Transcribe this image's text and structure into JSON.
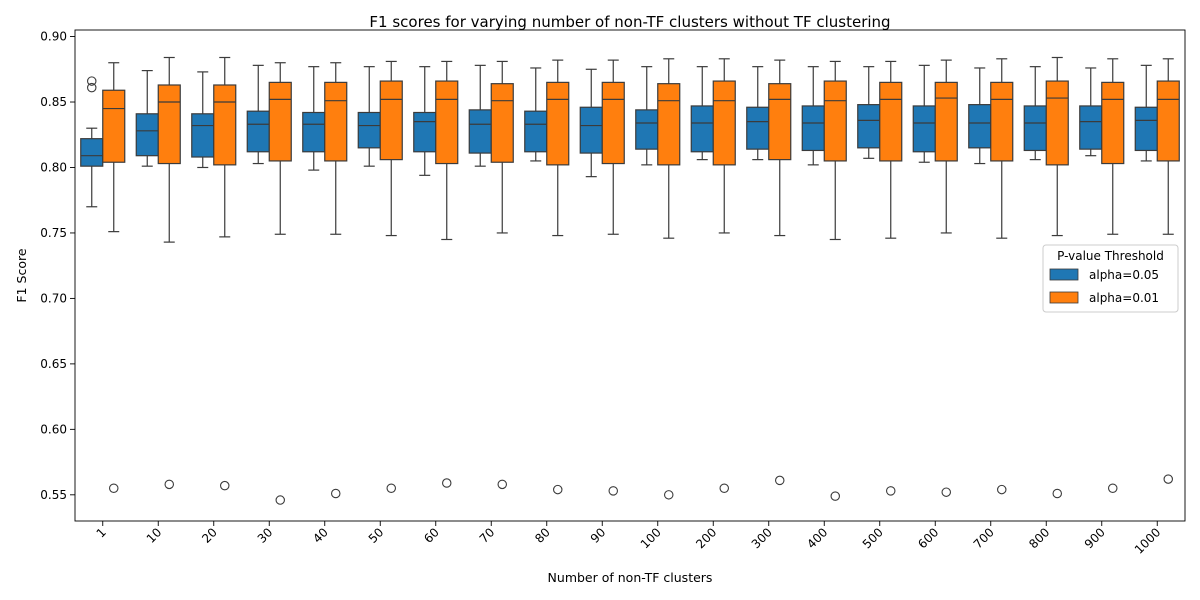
{
  "chart_data": {
    "type": "box",
    "title": "F1 scores for varying number of non-TF clusters without TF clustering",
    "xlabel": "Number of non-TF clusters",
    "ylabel": "F1 Score",
    "ylim": [
      0.53,
      0.905
    ],
    "yticks": [
      "0.55",
      "0.60",
      "0.65",
      "0.70",
      "0.75",
      "0.80",
      "0.85",
      "0.90"
    ],
    "categories": [
      "1",
      "10",
      "20",
      "30",
      "40",
      "50",
      "60",
      "70",
      "80",
      "90",
      "100",
      "200",
      "300",
      "400",
      "500",
      "600",
      "700",
      "800",
      "900",
      "1000"
    ],
    "legend": {
      "title": "P-value Threshold",
      "position": "center-right"
    },
    "series": [
      {
        "name": "alpha=0.05",
        "color": "#1f77b4",
        "boxes": [
          {
            "low": 0.77,
            "q1": 0.801,
            "median": 0.809,
            "q3": 0.822,
            "high": 0.83,
            "outliers": [
              0.861,
              0.866
            ]
          },
          {
            "low": 0.801,
            "q1": 0.809,
            "median": 0.828,
            "q3": 0.841,
            "high": 0.874,
            "outliers": []
          },
          {
            "low": 0.8,
            "q1": 0.808,
            "median": 0.832,
            "q3": 0.841,
            "high": 0.873,
            "outliers": []
          },
          {
            "low": 0.803,
            "q1": 0.812,
            "median": 0.833,
            "q3": 0.843,
            "high": 0.878,
            "outliers": []
          },
          {
            "low": 0.798,
            "q1": 0.812,
            "median": 0.833,
            "q3": 0.842,
            "high": 0.877,
            "outliers": []
          },
          {
            "low": 0.801,
            "q1": 0.815,
            "median": 0.832,
            "q3": 0.842,
            "high": 0.877,
            "outliers": []
          },
          {
            "low": 0.794,
            "q1": 0.812,
            "median": 0.835,
            "q3": 0.842,
            "high": 0.877,
            "outliers": []
          },
          {
            "low": 0.801,
            "q1": 0.811,
            "median": 0.833,
            "q3": 0.844,
            "high": 0.878,
            "outliers": []
          },
          {
            "low": 0.805,
            "q1": 0.812,
            "median": 0.833,
            "q3": 0.843,
            "high": 0.876,
            "outliers": []
          },
          {
            "low": 0.793,
            "q1": 0.811,
            "median": 0.832,
            "q3": 0.846,
            "high": 0.875,
            "outliers": []
          },
          {
            "low": 0.802,
            "q1": 0.814,
            "median": 0.834,
            "q3": 0.844,
            "high": 0.877,
            "outliers": []
          },
          {
            "low": 0.806,
            "q1": 0.812,
            "median": 0.834,
            "q3": 0.847,
            "high": 0.877,
            "outliers": []
          },
          {
            "low": 0.806,
            "q1": 0.814,
            "median": 0.835,
            "q3": 0.846,
            "high": 0.877,
            "outliers": []
          },
          {
            "low": 0.802,
            "q1": 0.813,
            "median": 0.834,
            "q3": 0.847,
            "high": 0.877,
            "outliers": []
          },
          {
            "low": 0.807,
            "q1": 0.815,
            "median": 0.836,
            "q3": 0.848,
            "high": 0.877,
            "outliers": []
          },
          {
            "low": 0.804,
            "q1": 0.812,
            "median": 0.834,
            "q3": 0.847,
            "high": 0.878,
            "outliers": []
          },
          {
            "low": 0.803,
            "q1": 0.815,
            "median": 0.834,
            "q3": 0.848,
            "high": 0.876,
            "outliers": []
          },
          {
            "low": 0.806,
            "q1": 0.813,
            "median": 0.834,
            "q3": 0.847,
            "high": 0.877,
            "outliers": []
          },
          {
            "low": 0.809,
            "q1": 0.814,
            "median": 0.835,
            "q3": 0.847,
            "high": 0.876,
            "outliers": []
          },
          {
            "low": 0.805,
            "q1": 0.813,
            "median": 0.836,
            "q3": 0.846,
            "high": 0.878,
            "outliers": []
          }
        ]
      },
      {
        "name": "alpha=0.01",
        "color": "#ff7f0e",
        "boxes": [
          {
            "low": 0.751,
            "q1": 0.804,
            "median": 0.845,
            "q3": 0.859,
            "high": 0.88,
            "outliers": [
              0.555
            ]
          },
          {
            "low": 0.743,
            "q1": 0.803,
            "median": 0.85,
            "q3": 0.863,
            "high": 0.884,
            "outliers": [
              0.558
            ]
          },
          {
            "low": 0.747,
            "q1": 0.802,
            "median": 0.85,
            "q3": 0.863,
            "high": 0.884,
            "outliers": [
              0.557
            ]
          },
          {
            "low": 0.749,
            "q1": 0.805,
            "median": 0.852,
            "q3": 0.865,
            "high": 0.88,
            "outliers": [
              0.546
            ]
          },
          {
            "low": 0.749,
            "q1": 0.805,
            "median": 0.851,
            "q3": 0.865,
            "high": 0.88,
            "outliers": [
              0.551
            ]
          },
          {
            "low": 0.748,
            "q1": 0.806,
            "median": 0.852,
            "q3": 0.866,
            "high": 0.881,
            "outliers": [
              0.555
            ]
          },
          {
            "low": 0.745,
            "q1": 0.803,
            "median": 0.852,
            "q3": 0.866,
            "high": 0.881,
            "outliers": [
              0.559
            ]
          },
          {
            "low": 0.75,
            "q1": 0.804,
            "median": 0.851,
            "q3": 0.864,
            "high": 0.881,
            "outliers": [
              0.558
            ]
          },
          {
            "low": 0.748,
            "q1": 0.802,
            "median": 0.852,
            "q3": 0.865,
            "high": 0.882,
            "outliers": [
              0.554
            ]
          },
          {
            "low": 0.749,
            "q1": 0.803,
            "median": 0.852,
            "q3": 0.865,
            "high": 0.882,
            "outliers": [
              0.553
            ]
          },
          {
            "low": 0.746,
            "q1": 0.802,
            "median": 0.851,
            "q3": 0.864,
            "high": 0.883,
            "outliers": [
              0.55
            ]
          },
          {
            "low": 0.75,
            "q1": 0.802,
            "median": 0.851,
            "q3": 0.866,
            "high": 0.883,
            "outliers": [
              0.555
            ]
          },
          {
            "low": 0.748,
            "q1": 0.806,
            "median": 0.852,
            "q3": 0.864,
            "high": 0.882,
            "outliers": [
              0.561
            ]
          },
          {
            "low": 0.745,
            "q1": 0.805,
            "median": 0.851,
            "q3": 0.866,
            "high": 0.881,
            "outliers": [
              0.549
            ]
          },
          {
            "low": 0.746,
            "q1": 0.805,
            "median": 0.852,
            "q3": 0.865,
            "high": 0.881,
            "outliers": [
              0.553
            ]
          },
          {
            "low": 0.75,
            "q1": 0.805,
            "median": 0.853,
            "q3": 0.865,
            "high": 0.882,
            "outliers": [
              0.552
            ]
          },
          {
            "low": 0.746,
            "q1": 0.805,
            "median": 0.852,
            "q3": 0.865,
            "high": 0.883,
            "outliers": [
              0.554
            ]
          },
          {
            "low": 0.748,
            "q1": 0.802,
            "median": 0.853,
            "q3": 0.866,
            "high": 0.884,
            "outliers": [
              0.551
            ]
          },
          {
            "low": 0.749,
            "q1": 0.803,
            "median": 0.852,
            "q3": 0.865,
            "high": 0.883,
            "outliers": [
              0.555
            ]
          },
          {
            "low": 0.749,
            "q1": 0.805,
            "median": 0.852,
            "q3": 0.866,
            "high": 0.883,
            "outliers": [
              0.562
            ]
          }
        ]
      }
    ]
  }
}
